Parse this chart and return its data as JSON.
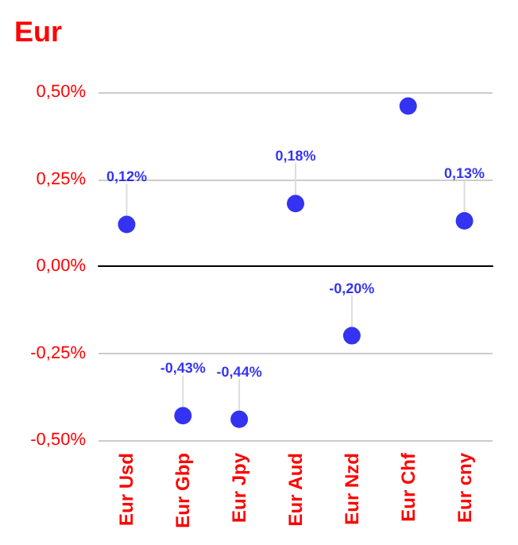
{
  "chart_data": {
    "type": "scatter",
    "title": "Eur",
    "categories": [
      "Eur Usd",
      "Eur Gbp",
      "Eur Jpy",
      "Eur Aud",
      "Eur Nzd",
      "Eur Chf",
      "Eur cny"
    ],
    "values": [
      0.12,
      -0.43,
      -0.44,
      0.18,
      -0.2,
      0.46,
      0.13
    ],
    "value_labels": [
      "0,12%",
      "-0,43%",
      "-0,44%",
      "0,18%",
      "-0,20%",
      null,
      "0,13%"
    ],
    "color": "#0000ee",
    "marker": "circle",
    "ylim": [
      -0.5,
      0.5
    ],
    "yticks": [
      {
        "value": -0.5,
        "label": "-0,50%"
      },
      {
        "value": -0.25,
        "label": "-0,25%"
      },
      {
        "value": 0,
        "label": "0,00%"
      },
      {
        "value": 0.25,
        "label": "0,25%"
      },
      {
        "value": 0.5,
        "label": "0,50%"
      }
    ],
    "grid": "y"
  }
}
